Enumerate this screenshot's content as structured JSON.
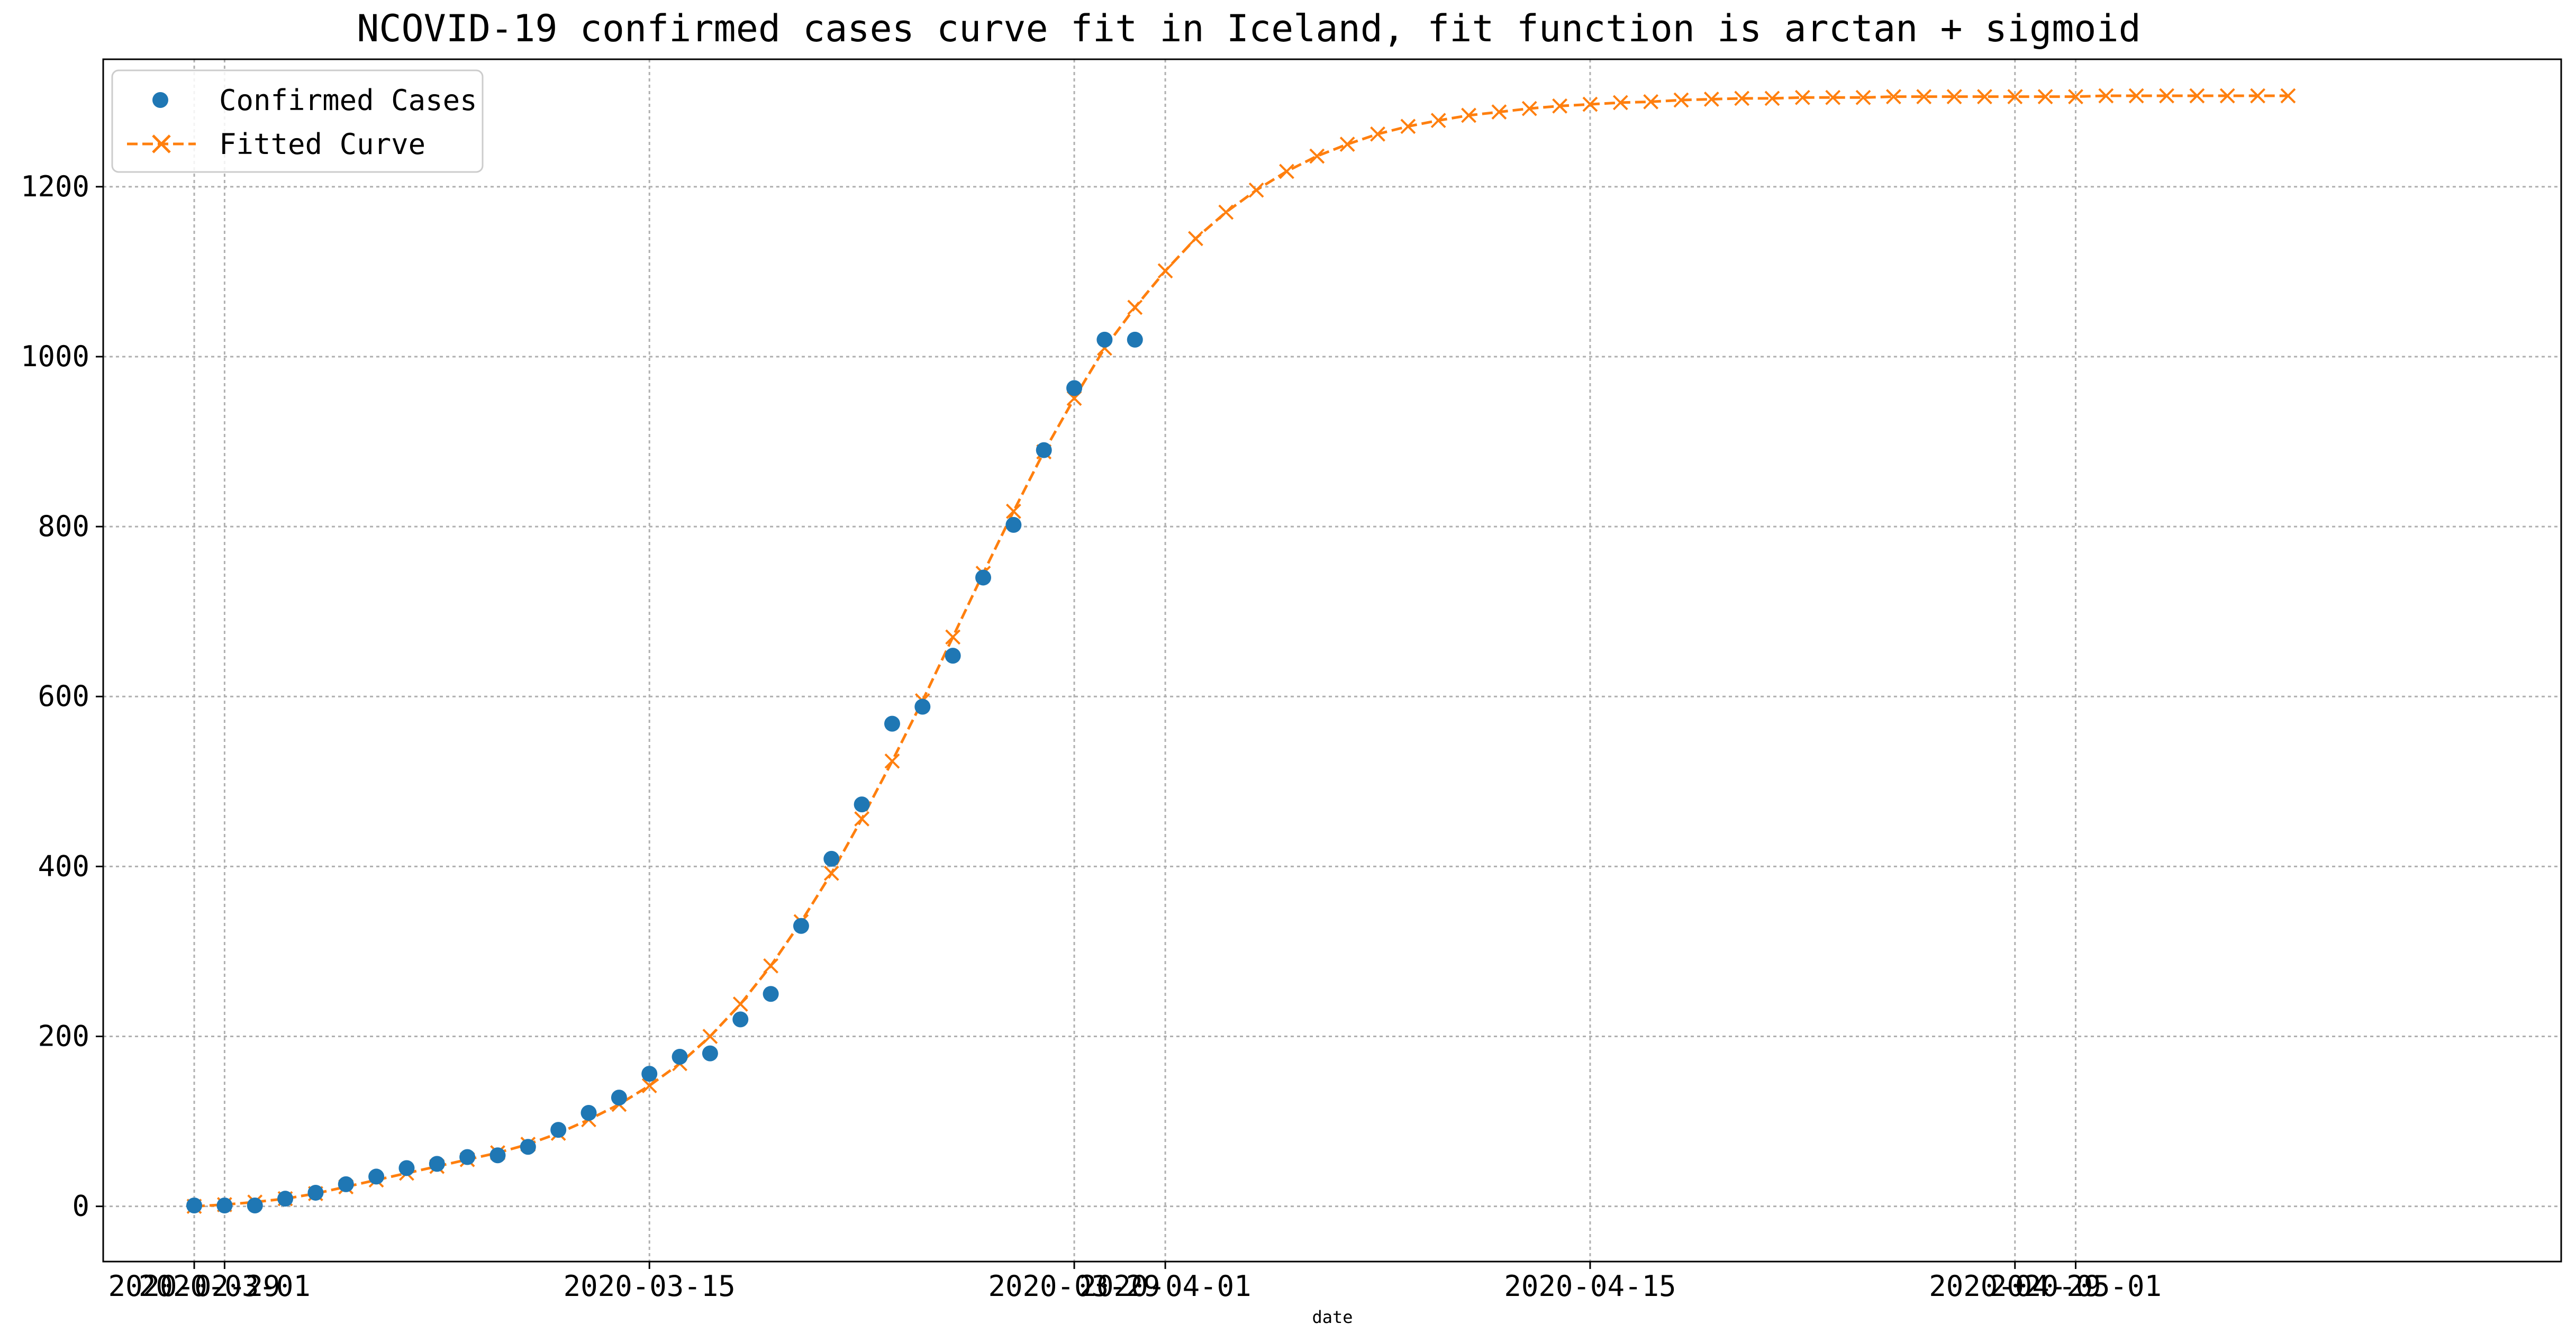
{
  "chart_data": {
    "type": "line",
    "title": "NCOVID-19 confirmed cases curve fit in Iceland, fit function is arctan + sigmoid",
    "xlabel": "date",
    "ylabel": "",
    "grid": true,
    "legend_position": "top-left",
    "x_ticks": [
      "2020-02-29",
      "2020-03-01",
      "2020-03-15",
      "2020-03-29",
      "2020-04-01",
      "2020-04-15",
      "2020-04-29",
      "2020-05-01"
    ],
    "y_ticks": [
      0,
      200,
      400,
      600,
      800,
      1000,
      1200
    ],
    "xlim": [
      "2020-02-26",
      "2020-05-17"
    ],
    "ylim": [
      -65,
      1350
    ],
    "colors": {
      "confirmed": "#1f77b4",
      "fitted": "#ff7f0e"
    },
    "series": [
      {
        "name": "Confirmed Cases",
        "style": "markers",
        "marker": "circle",
        "x": [
          "2020-02-29",
          "2020-03-01",
          "2020-03-02",
          "2020-03-03",
          "2020-03-04",
          "2020-03-05",
          "2020-03-06",
          "2020-03-07",
          "2020-03-08",
          "2020-03-09",
          "2020-03-10",
          "2020-03-11",
          "2020-03-12",
          "2020-03-13",
          "2020-03-14",
          "2020-03-15",
          "2020-03-16",
          "2020-03-17",
          "2020-03-18",
          "2020-03-19",
          "2020-03-20",
          "2020-03-21",
          "2020-03-22",
          "2020-03-23",
          "2020-03-24",
          "2020-03-25",
          "2020-03-26",
          "2020-03-27",
          "2020-03-28",
          "2020-03-29",
          "2020-03-30",
          "2020-03-31"
        ],
        "y": [
          1,
          1,
          1,
          9,
          16,
          26,
          35,
          45,
          50,
          58,
          60,
          70,
          90,
          110,
          128,
          156,
          176,
          180,
          220,
          250,
          330,
          409,
          473,
          568,
          588,
          648,
          740,
          802,
          890,
          963,
          1020,
          1020
        ]
      },
      {
        "name": "Fitted Curve",
        "style": "dashed-line-x-markers",
        "marker": "x",
        "x_start": "2020-02-29",
        "x_end": "2020-05-08",
        "y": [
          0,
          2,
          5,
          9,
          15,
          23,
          31,
          39,
          47,
          55,
          63,
          73,
          86,
          102,
          120,
          142,
          168,
          200,
          238,
          283,
          335,
          392,
          456,
          524,
          595,
          670,
          745,
          818,
          888,
          951,
          1010,
          1058,
          1101,
          1139,
          1170,
          1196,
          1218,
          1236,
          1250,
          1262,
          1271,
          1278,
          1284,
          1288,
          1292,
          1295,
          1297,
          1299,
          1300,
          1302,
          1303,
          1304,
          1304,
          1305,
          1305,
          1305,
          1306,
          1306,
          1306,
          1306,
          1306,
          1306,
          1306,
          1307,
          1307,
          1307,
          1307,
          1307,
          1307,
          1307
        ]
      }
    ]
  }
}
